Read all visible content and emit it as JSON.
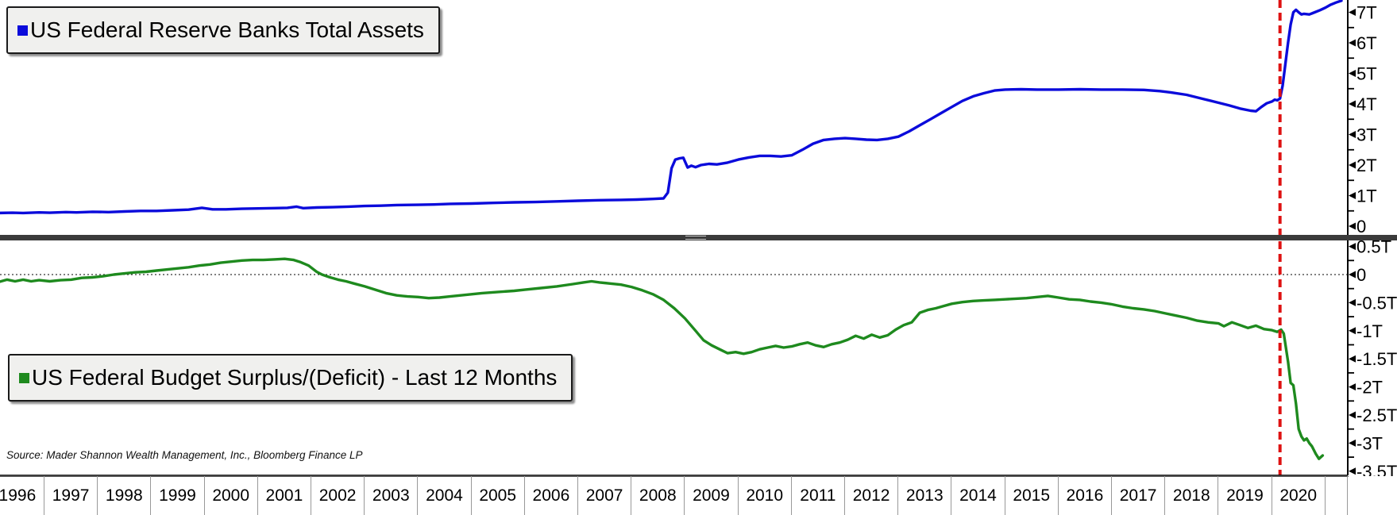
{
  "top_panel": {
    "legend": {
      "label": "US Federal Reserve Banks Total Assets",
      "marker_color": "#0b0bdb"
    },
    "y_axis": {
      "side": "right",
      "ticks": [
        {
          "value": 7,
          "label": "7T"
        },
        {
          "value": 6,
          "label": "6T"
        },
        {
          "value": 5,
          "label": "5T"
        },
        {
          "value": 4,
          "label": "4T"
        },
        {
          "value": 3,
          "label": "3T"
        },
        {
          "value": 2,
          "label": "2T"
        },
        {
          "value": 1,
          "label": "1T"
        },
        {
          "value": 0,
          "label": "0"
        }
      ],
      "minor_tick_values": [
        6.5,
        5.5,
        4.5,
        3.5,
        2.5,
        1.5,
        0.5
      ]
    }
  },
  "bottom_panel": {
    "legend": {
      "label": "US Federal Budget Surplus/(Deficit) - Last 12 Months",
      "marker_color": "#1e8a1e"
    },
    "y_axis": {
      "side": "right",
      "ticks": [
        {
          "value": 0.5,
          "label": "0.5T"
        },
        {
          "value": 0,
          "label": "0"
        },
        {
          "value": -0.5,
          "label": "-0.5T"
        },
        {
          "value": -1,
          "label": "-1T"
        },
        {
          "value": -1.5,
          "label": "-1.5T"
        },
        {
          "value": -2,
          "label": "-2T"
        },
        {
          "value": -2.5,
          "label": "-2.5T"
        },
        {
          "value": -3,
          "label": "-3T"
        },
        {
          "value": -3.5,
          "label": "-3.5T"
        }
      ],
      "minor_tick_values": [
        0.25,
        -0.25,
        -0.75,
        -1.25,
        -1.75,
        -2.25,
        -2.75,
        -3.25
      ],
      "zero_line": true
    }
  },
  "x_axis": {
    "years": [
      "1996",
      "1997",
      "1998",
      "1999",
      "2000",
      "2001",
      "2002",
      "2003",
      "2004",
      "2005",
      "2006",
      "2007",
      "2008",
      "2009",
      "2010",
      "2011",
      "2012",
      "2013",
      "2014",
      "2015",
      "2016",
      "2017",
      "2018",
      "2019",
      "2020"
    ]
  },
  "source_note": "Source: Mader Shannon Wealth Management, Inc., Bloomberg Finance LP",
  "annotations": {
    "event_vline": {
      "x_year": 2020.15,
      "color": "#de1212",
      "style": "dashed"
    }
  },
  "colors": {
    "fed_assets_line": "#0b0bdb",
    "budget_line": "#1e8a1e",
    "vline_red": "#de1212",
    "divider": "#3b3b3b",
    "legend_bg": "#f0f0ee",
    "axis": "#000000"
  },
  "chart_data": [
    {
      "type": "line",
      "name": "US Federal Reserve Banks Total Assets",
      "panel": "top",
      "color": "#0b0bdb",
      "unit": "trillions USD",
      "ylim": [
        0,
        7.5
      ],
      "x_range": [
        1996.15,
        2021.3
      ],
      "points": [
        [
          1996.15,
          0.43
        ],
        [
          1996.4,
          0.44
        ],
        [
          1996.6,
          0.43
        ],
        [
          1996.9,
          0.45
        ],
        [
          1997.1,
          0.44
        ],
        [
          1997.4,
          0.46
        ],
        [
          1997.6,
          0.45
        ],
        [
          1997.9,
          0.47
        ],
        [
          1998.2,
          0.46
        ],
        [
          1998.5,
          0.48
        ],
        [
          1998.8,
          0.5
        ],
        [
          1999.1,
          0.5
        ],
        [
          1999.4,
          0.52
        ],
        [
          1999.7,
          0.54
        ],
        [
          1999.95,
          0.6
        ],
        [
          2000.15,
          0.55
        ],
        [
          2000.4,
          0.55
        ],
        [
          2000.7,
          0.57
        ],
        [
          2001.0,
          0.58
        ],
        [
          2001.3,
          0.59
        ],
        [
          2001.55,
          0.6
        ],
        [
          2001.72,
          0.64
        ],
        [
          2001.85,
          0.59
        ],
        [
          2002.1,
          0.61
        ],
        [
          2002.4,
          0.62
        ],
        [
          2002.7,
          0.64
        ],
        [
          2003.0,
          0.66
        ],
        [
          2003.3,
          0.67
        ],
        [
          2003.6,
          0.69
        ],
        [
          2004.0,
          0.7
        ],
        [
          2004.3,
          0.71
        ],
        [
          2004.6,
          0.73
        ],
        [
          2005.0,
          0.74
        ],
        [
          2005.4,
          0.76
        ],
        [
          2005.8,
          0.78
        ],
        [
          2006.2,
          0.79
        ],
        [
          2006.6,
          0.81
        ],
        [
          2007.0,
          0.83
        ],
        [
          2007.4,
          0.85
        ],
        [
          2007.8,
          0.86
        ],
        [
          2008.1,
          0.87
        ],
        [
          2008.4,
          0.89
        ],
        [
          2008.6,
          0.91
        ],
        [
          2008.68,
          1.1
        ],
        [
          2008.75,
          1.9
        ],
        [
          2008.82,
          2.18
        ],
        [
          2008.9,
          2.22
        ],
        [
          2008.97,
          2.24
        ],
        [
          2009.05,
          1.92
        ],
        [
          2009.12,
          1.98
        ],
        [
          2009.2,
          1.93
        ],
        [
          2009.3,
          2.0
        ],
        [
          2009.45,
          2.04
        ],
        [
          2009.6,
          2.02
        ],
        [
          2009.8,
          2.08
        ],
        [
          2010.0,
          2.18
        ],
        [
          2010.2,
          2.25
        ],
        [
          2010.4,
          2.3
        ],
        [
          2010.6,
          2.3
        ],
        [
          2010.8,
          2.28
        ],
        [
          2011.0,
          2.32
        ],
        [
          2011.2,
          2.5
        ],
        [
          2011.4,
          2.7
        ],
        [
          2011.6,
          2.82
        ],
        [
          2011.8,
          2.86
        ],
        [
          2012.0,
          2.88
        ],
        [
          2012.2,
          2.86
        ],
        [
          2012.4,
          2.83
        ],
        [
          2012.6,
          2.82
        ],
        [
          2012.8,
          2.86
        ],
        [
          2013.0,
          2.93
        ],
        [
          2013.2,
          3.1
        ],
        [
          2013.4,
          3.3
        ],
        [
          2013.6,
          3.5
        ],
        [
          2013.8,
          3.7
        ],
        [
          2014.0,
          3.9
        ],
        [
          2014.2,
          4.1
        ],
        [
          2014.4,
          4.25
        ],
        [
          2014.6,
          4.35
        ],
        [
          2014.8,
          4.44
        ],
        [
          2015.0,
          4.47
        ],
        [
          2015.3,
          4.48
        ],
        [
          2015.6,
          4.47
        ],
        [
          2016.0,
          4.47
        ],
        [
          2016.4,
          4.48
        ],
        [
          2016.8,
          4.47
        ],
        [
          2017.2,
          4.47
        ],
        [
          2017.6,
          4.46
        ],
        [
          2017.9,
          4.42
        ],
        [
          2018.1,
          4.38
        ],
        [
          2018.4,
          4.3
        ],
        [
          2018.7,
          4.17
        ],
        [
          2019.0,
          4.04
        ],
        [
          2019.2,
          3.95
        ],
        [
          2019.4,
          3.85
        ],
        [
          2019.6,
          3.78
        ],
        [
          2019.7,
          3.76
        ],
        [
          2019.8,
          3.9
        ],
        [
          2019.9,
          4.02
        ],
        [
          2020.0,
          4.08
        ],
        [
          2020.05,
          4.14
        ],
        [
          2020.1,
          4.12
        ],
        [
          2020.15,
          4.18
        ],
        [
          2020.2,
          4.6
        ],
        [
          2020.25,
          5.3
        ],
        [
          2020.3,
          6.0
        ],
        [
          2020.35,
          6.6
        ],
        [
          2020.4,
          7.0
        ],
        [
          2020.45,
          7.08
        ],
        [
          2020.5,
          7.0
        ],
        [
          2020.55,
          6.93
        ],
        [
          2020.6,
          6.95
        ],
        [
          2020.7,
          6.93
        ],
        [
          2020.8,
          7.0
        ],
        [
          2020.9,
          7.07
        ],
        [
          2021.0,
          7.15
        ],
        [
          2021.1,
          7.25
        ],
        [
          2021.2,
          7.32
        ],
        [
          2021.3,
          7.38
        ]
      ]
    },
    {
      "type": "line",
      "name": "US Federal Budget Surplus/(Deficit) - Last 12 Months",
      "panel": "bottom",
      "color": "#1e8a1e",
      "unit": "trillions USD",
      "ylim": [
        -3.6,
        0.6
      ],
      "x_range": [
        1996.15,
        2020.95
      ],
      "points": [
        [
          1996.15,
          -0.13
        ],
        [
          1996.3,
          -0.09
        ],
        [
          1996.45,
          -0.12
        ],
        [
          1996.6,
          -0.09
        ],
        [
          1996.75,
          -0.12
        ],
        [
          1996.9,
          -0.1
        ],
        [
          1997.1,
          -0.12
        ],
        [
          1997.3,
          -0.1
        ],
        [
          1997.5,
          -0.09
        ],
        [
          1997.7,
          -0.06
        ],
        [
          1997.9,
          -0.05
        ],
        [
          1998.1,
          -0.03
        ],
        [
          1998.3,
          0.0
        ],
        [
          1998.5,
          0.02
        ],
        [
          1998.7,
          0.04
        ],
        [
          1998.9,
          0.05
        ],
        [
          1999.1,
          0.07
        ],
        [
          1999.3,
          0.09
        ],
        [
          1999.5,
          0.11
        ],
        [
          1999.7,
          0.13
        ],
        [
          1999.9,
          0.16
        ],
        [
          2000.1,
          0.18
        ],
        [
          2000.3,
          0.21
        ],
        [
          2000.5,
          0.23
        ],
        [
          2000.7,
          0.25
        ],
        [
          2000.9,
          0.26
        ],
        [
          2001.1,
          0.26
        ],
        [
          2001.3,
          0.27
        ],
        [
          2001.5,
          0.28
        ],
        [
          2001.67,
          0.26
        ],
        [
          2001.8,
          0.22
        ],
        [
          2001.95,
          0.16
        ],
        [
          2002.1,
          0.05
        ],
        [
          2002.2,
          0.0
        ],
        [
          2002.35,
          -0.05
        ],
        [
          2002.5,
          -0.09
        ],
        [
          2002.65,
          -0.12
        ],
        [
          2002.8,
          -0.16
        ],
        [
          2003.0,
          -0.21
        ],
        [
          2003.2,
          -0.27
        ],
        [
          2003.4,
          -0.33
        ],
        [
          2003.6,
          -0.37
        ],
        [
          2003.8,
          -0.39
        ],
        [
          2004.0,
          -0.4
        ],
        [
          2004.2,
          -0.42
        ],
        [
          2004.4,
          -0.41
        ],
        [
          2004.6,
          -0.39
        ],
        [
          2004.8,
          -0.37
        ],
        [
          2005.0,
          -0.35
        ],
        [
          2005.2,
          -0.33
        ],
        [
          2005.5,
          -0.31
        ],
        [
          2005.8,
          -0.29
        ],
        [
          2006.0,
          -0.27
        ],
        [
          2006.3,
          -0.24
        ],
        [
          2006.6,
          -0.21
        ],
        [
          2006.9,
          -0.17
        ],
        [
          2007.1,
          -0.14
        ],
        [
          2007.25,
          -0.12
        ],
        [
          2007.4,
          -0.14
        ],
        [
          2007.6,
          -0.16
        ],
        [
          2007.8,
          -0.18
        ],
        [
          2008.0,
          -0.22
        ],
        [
          2008.2,
          -0.28
        ],
        [
          2008.4,
          -0.35
        ],
        [
          2008.6,
          -0.45
        ],
        [
          2008.8,
          -0.6
        ],
        [
          2009.0,
          -0.78
        ],
        [
          2009.2,
          -1.0
        ],
        [
          2009.35,
          -1.17
        ],
        [
          2009.5,
          -1.26
        ],
        [
          2009.65,
          -1.33
        ],
        [
          2009.8,
          -1.4
        ],
        [
          2009.95,
          -1.38
        ],
        [
          2010.1,
          -1.41
        ],
        [
          2010.25,
          -1.38
        ],
        [
          2010.4,
          -1.33
        ],
        [
          2010.55,
          -1.3
        ],
        [
          2010.7,
          -1.27
        ],
        [
          2010.85,
          -1.3
        ],
        [
          2011.0,
          -1.28
        ],
        [
          2011.15,
          -1.24
        ],
        [
          2011.3,
          -1.21
        ],
        [
          2011.45,
          -1.26
        ],
        [
          2011.6,
          -1.29
        ],
        [
          2011.75,
          -1.24
        ],
        [
          2011.9,
          -1.21
        ],
        [
          2012.05,
          -1.16
        ],
        [
          2012.2,
          -1.09
        ],
        [
          2012.35,
          -1.14
        ],
        [
          2012.5,
          -1.07
        ],
        [
          2012.65,
          -1.12
        ],
        [
          2012.8,
          -1.08
        ],
        [
          2012.95,
          -0.98
        ],
        [
          2013.1,
          -0.9
        ],
        [
          2013.25,
          -0.85
        ],
        [
          2013.4,
          -0.68
        ],
        [
          2013.55,
          -0.63
        ],
        [
          2013.7,
          -0.6
        ],
        [
          2013.85,
          -0.56
        ],
        [
          2014.0,
          -0.52
        ],
        [
          2014.2,
          -0.49
        ],
        [
          2014.4,
          -0.47
        ],
        [
          2014.6,
          -0.46
        ],
        [
          2014.8,
          -0.45
        ],
        [
          2015.0,
          -0.44
        ],
        [
          2015.2,
          -0.43
        ],
        [
          2015.4,
          -0.42
        ],
        [
          2015.6,
          -0.4
        ],
        [
          2015.8,
          -0.38
        ],
        [
          2016.0,
          -0.41
        ],
        [
          2016.2,
          -0.44
        ],
        [
          2016.4,
          -0.45
        ],
        [
          2016.6,
          -0.48
        ],
        [
          2016.8,
          -0.5
        ],
        [
          2017.0,
          -0.53
        ],
        [
          2017.2,
          -0.57
        ],
        [
          2017.4,
          -0.6
        ],
        [
          2017.6,
          -0.62
        ],
        [
          2017.8,
          -0.65
        ],
        [
          2018.0,
          -0.69
        ],
        [
          2018.2,
          -0.73
        ],
        [
          2018.4,
          -0.77
        ],
        [
          2018.6,
          -0.82
        ],
        [
          2018.8,
          -0.85
        ],
        [
          2019.0,
          -0.87
        ],
        [
          2019.1,
          -0.92
        ],
        [
          2019.25,
          -0.85
        ],
        [
          2019.4,
          -0.9
        ],
        [
          2019.55,
          -0.95
        ],
        [
          2019.7,
          -0.91
        ],
        [
          2019.85,
          -0.97
        ],
        [
          2020.0,
          -0.99
        ],
        [
          2020.1,
          -1.02
        ],
        [
          2020.17,
          -0.98
        ],
        [
          2020.22,
          -1.05
        ],
        [
          2020.3,
          -1.55
        ],
        [
          2020.35,
          -1.93
        ],
        [
          2020.4,
          -1.97
        ],
        [
          2020.45,
          -2.3
        ],
        [
          2020.5,
          -2.75
        ],
        [
          2020.55,
          -2.88
        ],
        [
          2020.6,
          -2.95
        ],
        [
          2020.65,
          -2.92
        ],
        [
          2020.7,
          -3.0
        ],
        [
          2020.75,
          -3.06
        ],
        [
          2020.82,
          -3.19
        ],
        [
          2020.88,
          -3.28
        ],
        [
          2020.95,
          -3.22
        ]
      ]
    }
  ]
}
